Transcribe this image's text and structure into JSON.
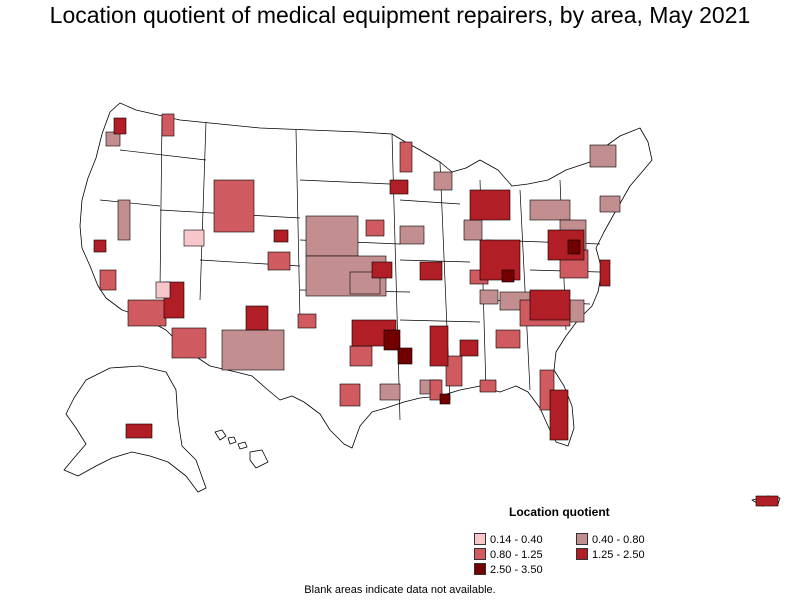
{
  "title": "Location quotient of medical equipment repairers, by area, May 2021",
  "legend": {
    "title": "Location quotient",
    "items": [
      {
        "label": "0.14 - 0.40",
        "color": "#f7c6cb"
      },
      {
        "label": "0.40 - 0.80",
        "color": "#c28e90"
      },
      {
        "label": "0.80 - 1.25",
        "color": "#cf5a5f"
      },
      {
        "label": "1.25 - 2.50",
        "color": "#b11e26"
      },
      {
        "label": "2.50 - 3.50",
        "color": "#730000"
      }
    ]
  },
  "note": "Blank areas indicate data not available.",
  "colors": {
    "border": "#000000",
    "no_data": "#ffffff"
  }
}
